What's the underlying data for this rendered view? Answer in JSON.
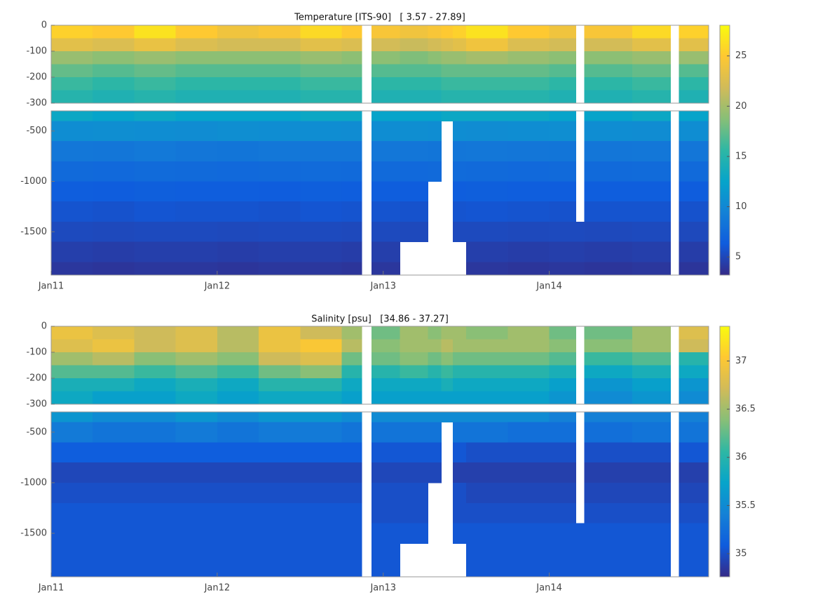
{
  "chart_data": [
    {
      "type": "contour",
      "title": "Temperature [ITS-90]   [ 3.57 - 27.89]",
      "x_edges": [
        2011,
        2011.25,
        2011.5,
        2011.75,
        2012,
        2012.25,
        2012.5,
        2012.75,
        2012.87,
        2012.93,
        2013.1,
        2013.27,
        2013.35,
        2013.42,
        2013.5,
        2013.75,
        2014,
        2014.16,
        2014.21,
        2014.5,
        2014.73,
        2014.78,
        2014.96
      ],
      "depth_edges": [
        0,
        -50,
        -100,
        -150,
        -200,
        -250,
        -300,
        -400,
        -600,
        -800,
        -1000,
        -1200,
        -1400,
        -1600,
        -1800,
        -1930
      ],
      "values": [
        [
          25.5,
          25,
          26.5,
          25,
          24,
          24.5,
          26,
          25,
          null,
          24.5,
          24,
          24.5,
          25,
          25.5,
          26.5,
          25,
          24,
          null,
          24.5,
          26,
          null,
          25.5
        ],
        [
          23,
          22.5,
          23.5,
          22.5,
          22,
          22,
          23,
          22.5,
          null,
          22,
          21.5,
          22,
          22.5,
          23,
          24,
          22.5,
          22,
          null,
          22,
          23,
          null,
          23
        ],
        [
          19.5,
          19,
          19.5,
          19,
          19,
          19,
          19.5,
          19,
          null,
          19,
          18.5,
          19,
          19.5,
          19.5,
          20,
          19.5,
          19,
          null,
          19,
          19.5,
          null,
          19.5
        ],
        [
          17.5,
          17,
          17.5,
          17,
          17,
          17,
          17.5,
          17.5,
          null,
          17,
          17,
          17,
          17.5,
          17.5,
          17.5,
          17.5,
          17,
          null,
          17,
          17.5,
          null,
          17
        ],
        [
          16,
          15.5,
          16,
          15.5,
          15.5,
          15.5,
          16,
          16,
          null,
          15.5,
          15.5,
          15.5,
          16,
          16,
          16,
          16,
          15.5,
          null,
          15.5,
          16,
          null,
          15.5
        ],
        [
          15,
          14.5,
          15,
          14.5,
          14.5,
          14.5,
          15,
          15,
          null,
          14.5,
          14.5,
          14.5,
          15,
          15,
          15,
          15,
          14.5,
          null,
          14.5,
          15,
          null,
          14.5
        ],
        [
          13,
          12.5,
          13,
          12.5,
          12.5,
          12.5,
          13,
          13,
          null,
          12.5,
          12.5,
          12.5,
          13,
          13,
          13,
          13,
          12.5,
          null,
          12.5,
          13,
          null,
          12.5
        ],
        [
          10.5,
          10.6,
          10.5,
          10.4,
          10.6,
          10.5,
          10.5,
          10.4,
          null,
          10.5,
          10.6,
          10.5,
          null,
          10.5,
          10.4,
          10.5,
          10.6,
          null,
          10.5,
          10.4,
          null,
          10.5
        ],
        [
          8.6,
          8.5,
          8.7,
          8.5,
          8.4,
          8.6,
          8.5,
          8.5,
          null,
          8.6,
          8.5,
          8.4,
          null,
          8.5,
          8.6,
          8.5,
          8.4,
          null,
          8.5,
          8.6,
          null,
          8.5
        ],
        [
          7.5,
          7.4,
          7.6,
          7.5,
          7.4,
          7.5,
          7.6,
          7.5,
          null,
          7.5,
          7.4,
          7.5,
          null,
          7.6,
          7.5,
          7.4,
          7.5,
          null,
          7.5,
          7.6,
          null,
          7.5
        ],
        [
          6.5,
          6.4,
          6.6,
          6.5,
          6.5,
          6.4,
          6.6,
          6.5,
          null,
          6.5,
          6.4,
          null,
          null,
          6.5,
          6.6,
          6.5,
          6.4,
          null,
          6.5,
          6.5,
          null,
          6.4
        ],
        [
          5.8,
          5.7,
          5.9,
          5.8,
          5.8,
          5.7,
          5.9,
          5.8,
          null,
          5.8,
          5.7,
          null,
          null,
          5.8,
          5.9,
          5.8,
          5.7,
          null,
          5.8,
          5.8,
          null,
          5.7
        ],
        [
          5.2,
          5.1,
          5.2,
          5.2,
          5.1,
          5.2,
          5.2,
          5.1,
          null,
          5.2,
          5.1,
          null,
          null,
          5.2,
          5.2,
          5.1,
          5.2,
          5.2,
          5.1,
          5.2,
          null,
          5.1
        ],
        [
          4.5,
          4.4,
          4.5,
          4.5,
          4.4,
          4.5,
          4.5,
          4.4,
          null,
          4.5,
          null,
          null,
          null,
          null,
          4.5,
          4.4,
          4.5,
          4.5,
          4.4,
          4.5,
          null,
          4.4
        ],
        [
          4,
          3.9,
          4,
          4,
          3.9,
          4,
          4,
          3.9,
          null,
          4,
          null,
          null,
          null,
          null,
          4,
          3.9,
          4,
          4,
          3.9,
          4,
          null,
          3.9
        ]
      ],
      "panels": [
        {
          "ylim": [
            -300,
            0
          ],
          "yticks": [
            0,
            -100,
            -200,
            -300
          ]
        },
        {
          "ylim": [
            -1930,
            -300
          ],
          "yticks": [
            -500,
            -1000,
            -1500
          ]
        }
      ],
      "xlim": [
        2011,
        2014.96
      ],
      "xticks": [
        {
          "value": 2011,
          "label": "Jan11"
        },
        {
          "value": 2012,
          "label": "Jan12"
        },
        {
          "value": 2013,
          "label": "Jan13"
        },
        {
          "value": 2014,
          "label": "Jan14"
        }
      ],
      "clim": [
        3.2,
        28.05
      ],
      "cticks": [
        5,
        10,
        15,
        20,
        25
      ],
      "colormap": [
        "#352a87",
        "#0f5cdd",
        "#1481d6",
        "#06a4ca",
        "#2eb7a4",
        "#87bf77",
        "#d1bb59",
        "#fec832",
        "#f9fb0e"
      ]
    },
    {
      "type": "contour",
      "title": "Salinity [psu]   [34.86 - 37.27]",
      "x_edges": [
        2011,
        2011.25,
        2011.5,
        2011.75,
        2012,
        2012.25,
        2012.5,
        2012.75,
        2012.87,
        2012.93,
        2013.1,
        2013.27,
        2013.35,
        2013.42,
        2013.5,
        2013.75,
        2014,
        2014.16,
        2014.21,
        2014.5,
        2014.73,
        2014.78,
        2014.96
      ],
      "depth_edges": [
        0,
        -50,
        -100,
        -150,
        -200,
        -250,
        -300,
        -400,
        -600,
        -800,
        -1000,
        -1200,
        -1400,
        -1600,
        -1800,
        -1930
      ],
      "values": [
        [
          36.9,
          36.8,
          36.7,
          36.8,
          36.6,
          36.9,
          36.7,
          36.5,
          null,
          36.3,
          36.5,
          36.4,
          36.5,
          36.5,
          36.4,
          36.5,
          36.3,
          null,
          36.3,
          36.5,
          null,
          36.8
        ],
        [
          36.8,
          36.9,
          36.7,
          36.8,
          36.6,
          36.9,
          37,
          36.6,
          null,
          36.4,
          36.5,
          36.5,
          36.6,
          36.5,
          36.5,
          36.5,
          36.4,
          null,
          36.4,
          36.5,
          null,
          36.7
        ],
        [
          36.5,
          36.6,
          36.4,
          36.5,
          36.4,
          36.7,
          36.8,
          36.3,
          null,
          36.3,
          36.4,
          36.3,
          36.4,
          36.3,
          36.3,
          36.3,
          36.2,
          null,
          36.1,
          36.2,
          null,
          36
        ],
        [
          36.2,
          36.2,
          36.1,
          36.2,
          36.1,
          36.3,
          36.4,
          36,
          null,
          36,
          36.1,
          36,
          36.1,
          36,
          36,
          36,
          35.9,
          null,
          35.8,
          35.9,
          null,
          35.8
        ],
        [
          35.9,
          35.9,
          35.8,
          35.9,
          35.8,
          36,
          36,
          35.8,
          null,
          35.8,
          35.8,
          35.8,
          35.9,
          35.8,
          35.8,
          35.8,
          35.7,
          null,
          35.6,
          35.7,
          null,
          35.6
        ],
        [
          35.8,
          35.7,
          35.7,
          35.8,
          35.7,
          35.8,
          35.8,
          35.7,
          null,
          35.7,
          35.7,
          35.7,
          35.7,
          35.7,
          35.7,
          35.7,
          35.6,
          null,
          35.5,
          35.6,
          null,
          35.5
        ],
        [
          35.6,
          35.5,
          35.5,
          35.6,
          35.5,
          35.6,
          35.6,
          35.5,
          null,
          35.5,
          35.5,
          35.5,
          35.5,
          35.5,
          35.5,
          35.5,
          35.4,
          null,
          35.4,
          35.4,
          null,
          35.4
        ],
        [
          35.35,
          35.3,
          35.3,
          35.35,
          35.3,
          35.35,
          35.35,
          35.3,
          null,
          35.3,
          35.3,
          35.3,
          null,
          35.3,
          35.3,
          35.25,
          35.25,
          null,
          35.25,
          35.3,
          null,
          35.3
        ],
        [
          35.1,
          35.1,
          35.1,
          35.1,
          35.1,
          35.1,
          35.1,
          35.1,
          null,
          35.05,
          35.05,
          35.05,
          null,
          35.05,
          35,
          35,
          35,
          null,
          35,
          35,
          null,
          35.05
        ],
        [
          34.95,
          34.95,
          34.95,
          34.95,
          34.95,
          34.95,
          34.95,
          34.95,
          null,
          34.95,
          34.95,
          34.95,
          null,
          34.9,
          34.9,
          34.9,
          34.9,
          null,
          34.9,
          34.9,
          null,
          34.9
        ],
        [
          35,
          35,
          35,
          35,
          35,
          35,
          35,
          35,
          null,
          35,
          35,
          null,
          null,
          35,
          34.95,
          34.95,
          34.95,
          null,
          34.95,
          34.95,
          null,
          34.95
        ],
        [
          35.05,
          35.05,
          35.05,
          35.05,
          35.05,
          35.05,
          35.05,
          35.05,
          null,
          35,
          35,
          null,
          null,
          35,
          35,
          35,
          35,
          null,
          35,
          35,
          null,
          35
        ],
        [
          35.05,
          35.05,
          35.05,
          35.05,
          35.05,
          35.05,
          35.05,
          35.05,
          null,
          35.05,
          35.05,
          null,
          null,
          35.05,
          35.05,
          35.05,
          35.05,
          35.05,
          35.05,
          35.05,
          null,
          35.05
        ],
        [
          35.05,
          35.05,
          35.05,
          35.05,
          35.05,
          35.05,
          35.05,
          35.05,
          null,
          35.05,
          null,
          null,
          null,
          null,
          35.05,
          35.05,
          35.05,
          35.05,
          35.05,
          35.05,
          null,
          35.05
        ],
        [
          35.05,
          35.05,
          35.05,
          35.05,
          35.05,
          35.05,
          35.05,
          35.05,
          null,
          35.05,
          null,
          null,
          null,
          null,
          35.05,
          35.05,
          35.05,
          35.05,
          35.05,
          35.05,
          null,
          35.05
        ]
      ],
      "panels": [
        {
          "ylim": [
            -300,
            0
          ],
          "yticks": [
            0,
            -100,
            -200,
            -300
          ]
        },
        {
          "ylim": [
            -1930,
            -300
          ],
          "yticks": [
            -500,
            -1000,
            -1500
          ]
        }
      ],
      "xlim": [
        2011,
        2014.96
      ],
      "xticks": [
        {
          "value": 2011,
          "label": "Jan11"
        },
        {
          "value": 2012,
          "label": "Jan12"
        },
        {
          "value": 2013,
          "label": "Jan13"
        },
        {
          "value": 2014,
          "label": "Jan14"
        }
      ],
      "clim": [
        34.76,
        37.36
      ],
      "cticks": [
        35,
        35.5,
        36,
        36.5,
        37
      ],
      "colormap": [
        "#352a87",
        "#0f5cdd",
        "#1481d6",
        "#06a4ca",
        "#2eb7a4",
        "#87bf77",
        "#d1bb59",
        "#fec832",
        "#f9fb0e"
      ]
    }
  ]
}
